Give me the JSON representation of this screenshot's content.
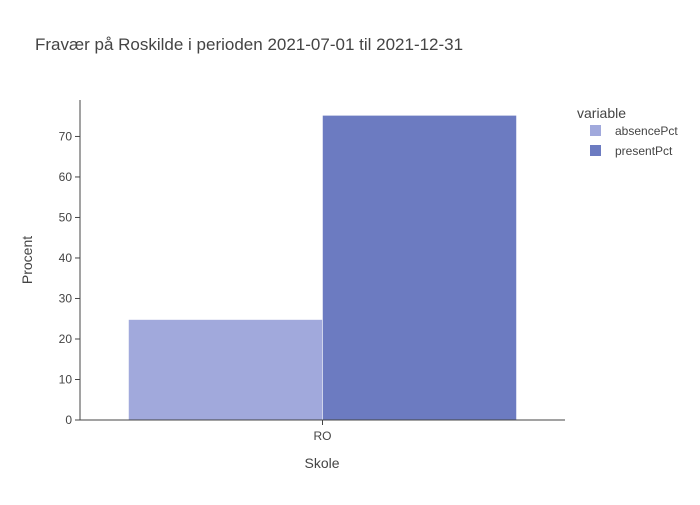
{
  "chart_data": {
    "type": "bar",
    "title": "Fravær på Roskilde i perioden 2021-07-01 til 2021-12-31",
    "xlabel": "Skole",
    "ylabel": "Procent",
    "categories": [
      "RO"
    ],
    "series": [
      {
        "name": "absencePct",
        "values": [
          24.8
        ],
        "color": "#a1a9dc"
      },
      {
        "name": "presentPct",
        "values": [
          75.2
        ],
        "color": "#6c7bc1"
      }
    ],
    "ylim": [
      0,
      79
    ],
    "yticks": [
      0,
      10,
      20,
      30,
      40,
      50,
      60,
      70
    ],
    "barmode": "group",
    "grid": false,
    "legend": {
      "title": "variable",
      "position": "top-right"
    }
  }
}
